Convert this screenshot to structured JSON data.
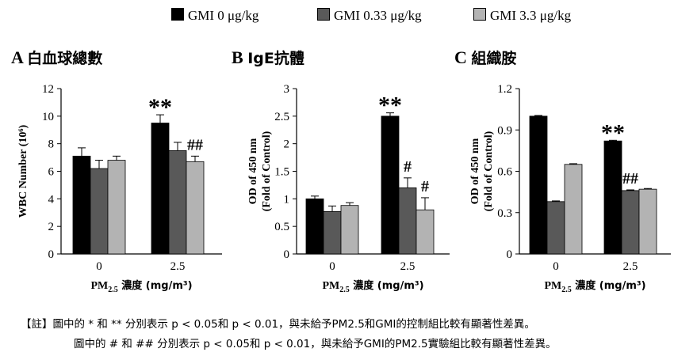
{
  "legend": [
    {
      "label": "GMI 0 μg/kg",
      "color": "#000000"
    },
    {
      "label": "GMI 0.33 μg/kg",
      "color": "#595959"
    },
    {
      "label": "GMI 3.3 μg/kg",
      "color": "#b3b3b3"
    }
  ],
  "notes": {
    "line1": "【註】圖中的 * 和 ** 分別表示 p < 0.05和 p < 0.01，與未給予PM2.5和GMI的控制組比較有顯著性差異。",
    "line2": "圖中的 # 和 ## 分別表示 p < 0.05和 p < 0.01，與未給予GMI的PM2.5實驗組比較有顯著性差異。"
  },
  "chart_data": [
    {
      "type": "bar",
      "panel_letter": "A",
      "panel_title": "白血球總數",
      "ylabel": "WBC Number (10⁶)",
      "xlabel_main": "PM",
      "xlabel_sub": "2.5",
      "xlabel_rest": " 濃度 (mg/m³)",
      "categories": [
        "0",
        "2.5"
      ],
      "ylim": [
        0,
        12
      ],
      "yticks": [
        "0",
        "2",
        "4",
        "6",
        "8",
        "10",
        "12"
      ],
      "grid": false,
      "series": [
        {
          "name": "GMI 0 μg/kg",
          "values": [
            7.1,
            9.5
          ],
          "errors": [
            0.6,
            0.6
          ],
          "color": "#000000"
        },
        {
          "name": "GMI 0.33 μg/kg",
          "values": [
            6.2,
            7.5
          ],
          "errors": [
            0.6,
            0.6
          ],
          "color": "#595959"
        },
        {
          "name": "GMI 3.3 μg/kg",
          "values": [
            6.8,
            6.7
          ],
          "errors": [
            0.3,
            0.4
          ],
          "color": "#b3b3b3"
        }
      ],
      "annotations": [
        {
          "text": "**",
          "category": 1,
          "series": 0
        },
        {
          "text": "##",
          "category": 1,
          "series": 2
        }
      ]
    },
    {
      "type": "bar",
      "panel_letter": "B",
      "panel_title": "IgE抗體",
      "ylabel": "OD of 450 nm",
      "ylabel2": "(Fold of Control)",
      "xlabel_main": "PM",
      "xlabel_sub": "2.5",
      "xlabel_rest": " 濃度 (mg/m³)",
      "categories": [
        "0",
        "2.5"
      ],
      "ylim": [
        0,
        3
      ],
      "yticks": [
        "0",
        "0.5",
        "1",
        "1.5",
        "2",
        "2.5",
        "3"
      ],
      "grid": false,
      "series": [
        {
          "name": "GMI 0 μg/kg",
          "values": [
            1.0,
            2.5
          ],
          "errors": [
            0.05,
            0.06
          ],
          "color": "#000000"
        },
        {
          "name": "GMI 0.33 μg/kg",
          "values": [
            0.77,
            1.2
          ],
          "errors": [
            0.1,
            0.18
          ],
          "color": "#595959"
        },
        {
          "name": "GMI 3.3 μg/kg",
          "values": [
            0.88,
            0.8
          ],
          "errors": [
            0.05,
            0.22
          ],
          "color": "#b3b3b3"
        }
      ],
      "annotations": [
        {
          "text": "**",
          "category": 1,
          "series": 0
        },
        {
          "text": "#",
          "category": 1,
          "series": 1
        },
        {
          "text": "#",
          "category": 1,
          "series": 2
        }
      ]
    },
    {
      "type": "bar",
      "panel_letter": "C",
      "panel_title": "組織胺",
      "ylabel": "OD of 450 nm",
      "ylabel2": "(Fold of Control)",
      "xlabel_main": "PM",
      "xlabel_sub": "2.5",
      "xlabel_rest": " 濃度 (mg/m³)",
      "categories": [
        "0",
        "2.5"
      ],
      "ylim": [
        0,
        1.2
      ],
      "yticks": [
        "0",
        "0.3",
        "0.6",
        "0.9",
        "1.2"
      ],
      "grid": false,
      "series": [
        {
          "name": "GMI 0 μg/kg",
          "values": [
            1.0,
            0.82
          ],
          "errors": [
            0.005,
            0.005
          ],
          "color": "#000000"
        },
        {
          "name": "GMI 0.33 μg/kg",
          "values": [
            0.38,
            0.46
          ],
          "errors": [
            0.005,
            0.005
          ],
          "color": "#595959"
        },
        {
          "name": "GMI 3.3 μg/kg",
          "values": [
            0.65,
            0.47
          ],
          "errors": [
            0.005,
            0.005
          ],
          "color": "#b3b3b3"
        }
      ],
      "annotations": [
        {
          "text": "**",
          "category": 1,
          "series": 0
        },
        {
          "text": "##",
          "category": 1,
          "series": 1
        }
      ]
    }
  ]
}
